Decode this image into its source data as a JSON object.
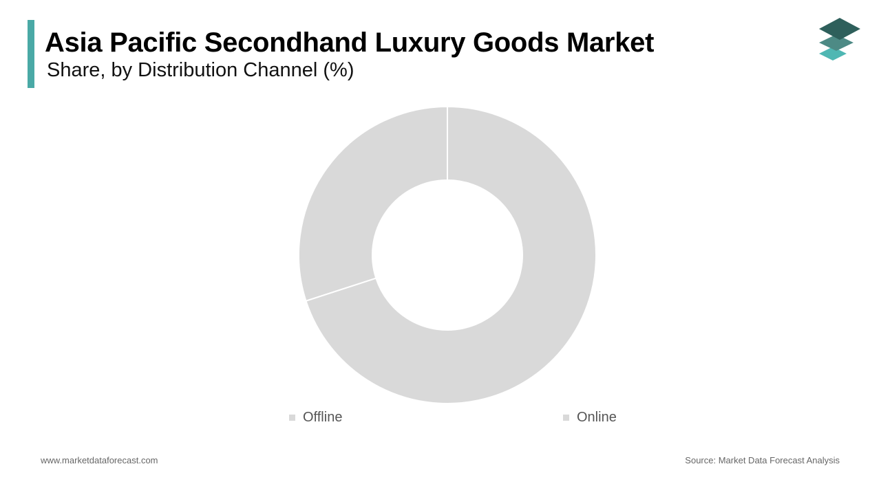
{
  "header": {
    "title": "Asia Pacific Secondhand Luxury Goods Market",
    "subtitle": "Share, by Distribution Channel (%)"
  },
  "colors": {
    "accent": "#4aa9a6",
    "slice": "#d9d9d9",
    "logo_top": "#2e5f5b",
    "logo_mid": "#4d8a85",
    "logo_bottom": "#4fb7b3"
  },
  "logo": {
    "icon": "stacked-layers-icon"
  },
  "chart_data": {
    "type": "pie",
    "donut": true,
    "categories": [
      "Offline",
      "Online"
    ],
    "values": [
      30,
      70
    ],
    "legend": "bottom"
  },
  "footer": {
    "website": "www.marketdataforecast.com",
    "source": "Source: Market Data Forecast Analysis"
  }
}
